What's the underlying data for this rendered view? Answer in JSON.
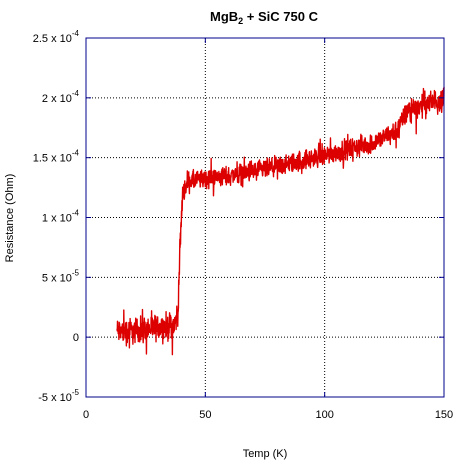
{
  "chart_data": {
    "type": "line",
    "title": {
      "main": "MgB",
      "subscript": "2",
      "rest": " + SiC 750 C"
    },
    "xlabel": "Temp (K)",
    "ylabel": "Resistance (Ohm)",
    "xlim": [
      0,
      150
    ],
    "ylim": [
      -5e-05,
      0.00025
    ],
    "x_ticks": [
      {
        "value": 0,
        "label": "0"
      },
      {
        "value": 50,
        "label": "50"
      },
      {
        "value": 100,
        "label": "100"
      },
      {
        "value": 150,
        "label": "150"
      }
    ],
    "y_ticks": [
      {
        "value": 0.00025,
        "mantissa": "2.5 x 10",
        "exp": "-4"
      },
      {
        "value": 0.0002,
        "mantissa": "2 x 10",
        "exp": "-4"
      },
      {
        "value": 0.00015,
        "mantissa": "1.5 x 10",
        "exp": "-4"
      },
      {
        "value": 0.0001,
        "mantissa": "1 x 10",
        "exp": "-4"
      },
      {
        "value": 5e-05,
        "mantissa": "5 x 10",
        "exp": "-5"
      },
      {
        "value": 0,
        "mantissa": "0",
        "exp": ""
      },
      {
        "value": -5e-05,
        "mantissa": "-5 x 10",
        "exp": "-5"
      }
    ],
    "grid": true,
    "series": [
      {
        "color": "#dd0000",
        "x_range": [
          13,
          150
        ],
        "trend": [
          {
            "x": 13,
            "y": 5e-06
          },
          {
            "x": 20,
            "y": 5e-06
          },
          {
            "x": 30,
            "y": 8e-06
          },
          {
            "x": 37,
            "y": 1e-05
          },
          {
            "x": 38.5,
            "y": 2e-05
          },
          {
            "x": 39.5,
            "y": 8e-05
          },
          {
            "x": 40.5,
            "y": 0.00012
          },
          {
            "x": 43,
            "y": 0.00013
          },
          {
            "x": 60,
            "y": 0.000135
          },
          {
            "x": 80,
            "y": 0.000142
          },
          {
            "x": 100,
            "y": 0.000152
          },
          {
            "x": 120,
            "y": 0.000162
          },
          {
            "x": 130,
            "y": 0.000172
          },
          {
            "x": 135,
            "y": 0.00019
          },
          {
            "x": 150,
            "y": 0.0002
          }
        ],
        "noise": [
          {
            "x": 13,
            "amp": 1.6e-05
          },
          {
            "x": 37,
            "amp": 1.6e-05
          },
          {
            "x": 42,
            "amp": 1.2e-05
          },
          {
            "x": 130,
            "amp": 1.2e-05
          },
          {
            "x": 150,
            "amp": 1.5e-05
          }
        ]
      }
    ]
  },
  "colors": {
    "axis": "#00008b",
    "grid": "#000000",
    "series": "#dd0000"
  }
}
